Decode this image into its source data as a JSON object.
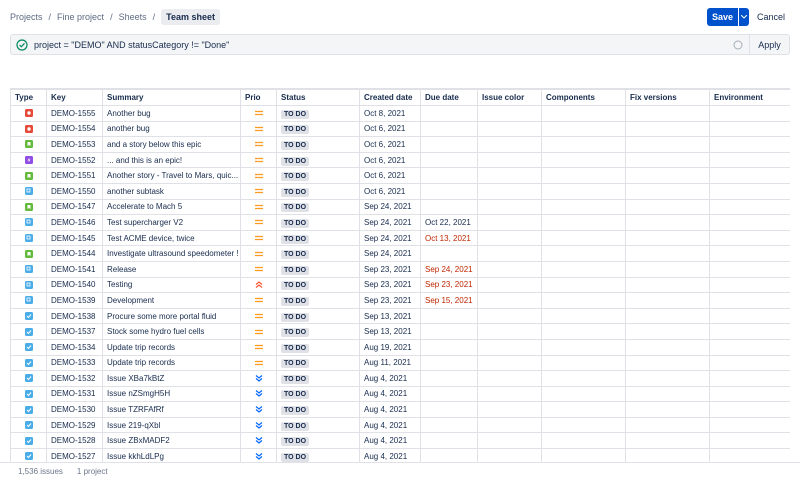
{
  "breadcrumbs": [
    "Projects",
    "Fine project",
    "Sheets",
    "Team sheet"
  ],
  "buttons": {
    "save": "Save",
    "cancel": "Cancel"
  },
  "query": {
    "text": "project = \"DEMO\" AND statusCategory != \"Done\"",
    "apply": "Apply"
  },
  "table": {
    "headers": [
      "Type",
      "Key",
      "Summary",
      "Prio",
      "Status",
      "Created date",
      "Due date",
      "Issue color",
      "Components",
      "Fix versions",
      "Environment"
    ],
    "rows": [
      {
        "key": "DEMO-1555",
        "summary": "Another bug",
        "status": "TO DO",
        "created": "Oct 8, 2021"
      },
      {
        "key": "DEMO-1554",
        "summary": "another bug",
        "status": "TO DO",
        "created": "Oct 6, 2021"
      },
      {
        "key": "DEMO-1553",
        "summary": "and a story below this epic",
        "status": "TO DO",
        "created": "Oct 6, 2021"
      },
      {
        "key": "DEMO-1552",
        "summary": "... and this is an epic!",
        "status": "TO DO",
        "created": "Oct 6, 2021"
      },
      {
        "key": "DEMO-1551",
        "summary": "Another story - Travel to Mars, quic...",
        "status": "TO DO",
        "created": "Oct 6, 2021"
      },
      {
        "key": "DEMO-1550",
        "summary": "another subtask",
        "status": "TO DO",
        "created": "Oct 6, 2021"
      },
      {
        "key": "DEMO-1547",
        "summary": "Accelerate to Mach 5",
        "status": "TO DO",
        "created": "Sep 24, 2021"
      },
      {
        "key": "DEMO-1546",
        "summary": "Test supercharger V2",
        "status": "TO DO",
        "created": "Sep 24, 2021",
        "due": "Oct 22, 2021"
      },
      {
        "key": "DEMO-1545",
        "summary": "Test ACME device, twice",
        "status": "TO DO",
        "created": "Sep 24, 2021",
        "due": "Oct 13, 2021"
      },
      {
        "key": "DEMO-1544",
        "summary": "Investigate ultrasound speedometer !",
        "status": "TO DO",
        "created": "Sep 24, 2021"
      },
      {
        "key": "DEMO-1541",
        "summary": "Release",
        "status": "TO DO",
        "created": "Sep 23, 2021",
        "due": "Sep 24, 2021"
      },
      {
        "key": "DEMO-1540",
        "summary": "Testing",
        "status": "TO DO",
        "created": "Sep 23, 2021",
        "due": "Sep 23, 2021"
      },
      {
        "key": "DEMO-1539",
        "summary": "Development",
        "status": "TO DO",
        "created": "Sep 23, 2021",
        "due": "Sep 15, 2021"
      },
      {
        "key": "DEMO-1538",
        "summary": "Procure some more portal fluid",
        "status": "TO DO",
        "created": "Sep 13, 2021"
      },
      {
        "key": "DEMO-1537",
        "summary": "Stock some hydro fuel cells",
        "status": "TO DO",
        "created": "Sep 13, 2021"
      },
      {
        "key": "DEMO-1534",
        "summary": "Update trip records",
        "status": "TO DO",
        "created": "Aug 19, 2021"
      },
      {
        "key": "DEMO-1533",
        "summary": "Update trip records",
        "status": "TO DO",
        "created": "Aug 11, 2021"
      },
      {
        "key": "DEMO-1532",
        "summary": "Issue XBa7kBtZ",
        "status": "TO DO",
        "created": "Aug 4, 2021"
      },
      {
        "key": "DEMO-1531",
        "summary": "Issue nZSmgH5H",
        "status": "TO DO",
        "created": "Aug 4, 2021"
      },
      {
        "key": "DEMO-1530",
        "summary": "Issue TZRFAfRf",
        "status": "TO DO",
        "created": "Aug 4, 2021"
      },
      {
        "key": "DEMO-1529",
        "summary": "Issue 219-qXbl",
        "status": "TO DO",
        "created": "Aug 4, 2021"
      },
      {
        "key": "DEMO-1528",
        "summary": "Issue ZBxMADF2",
        "status": "TO DO",
        "created": "Aug 4, 2021"
      },
      {
        "key": "DEMO-1527",
        "summary": "Issue kkhLdLPg",
        "status": "TO DO",
        "created": "Aug 4, 2021"
      }
    ]
  },
  "footer": {
    "issues": "1,536 issues",
    "projects": "1 project"
  }
}
